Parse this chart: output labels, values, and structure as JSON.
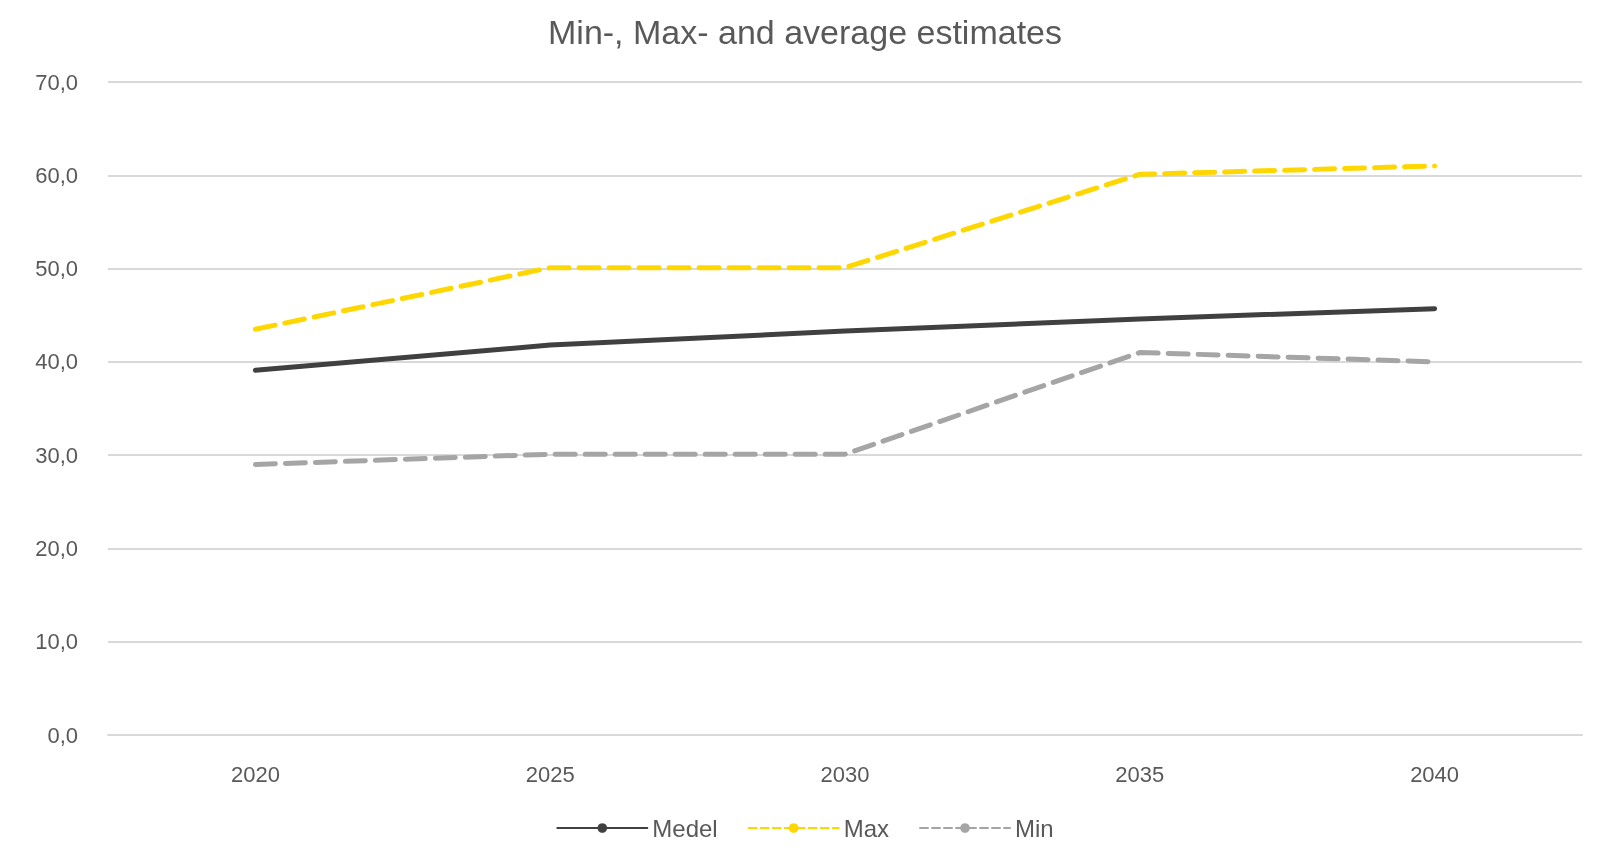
{
  "chart_data": {
    "type": "line",
    "title": "Min-, Max- and average estimates",
    "categories": [
      "2020",
      "2025",
      "2030",
      "2035",
      "2040"
    ],
    "series": [
      {
        "name": "Medel",
        "color": "#404040",
        "line_style": "solid",
        "values": [
          39.1,
          41.8,
          43.3,
          44.6,
          45.7
        ]
      },
      {
        "name": "Max",
        "color": "#ffd700",
        "line_style": "dashed",
        "values": [
          43.5,
          50.1,
          50.1,
          60.1,
          61.0
        ]
      },
      {
        "name": "Min",
        "color": "#a5a5a5",
        "line_style": "dashed",
        "values": [
          29.0,
          30.1,
          30.1,
          41.0,
          40.0
        ]
      }
    ],
    "ylim": [
      0,
      70
    ],
    "yticks": [
      {
        "value": 0,
        "label": "0,0"
      },
      {
        "value": 10,
        "label": "10,0"
      },
      {
        "value": 20,
        "label": "20,0"
      },
      {
        "value": 30,
        "label": "30,0"
      },
      {
        "value": 40,
        "label": "40,0"
      },
      {
        "value": 50,
        "label": "50,0"
      },
      {
        "value": 60,
        "label": "60,0"
      },
      {
        "value": 70,
        "label": "70,0"
      }
    ],
    "grid": "y",
    "legend": "bottom",
    "marker": "none"
  }
}
